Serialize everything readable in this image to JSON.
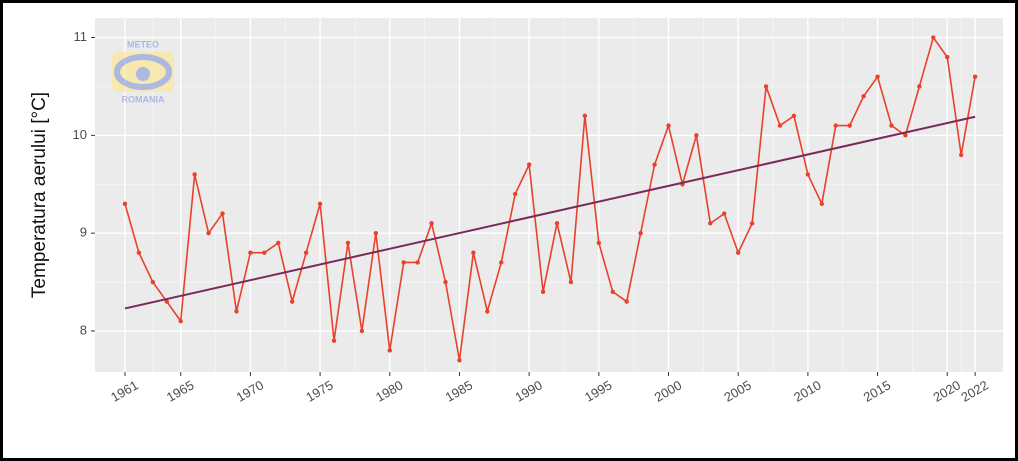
{
  "chart_data": {
    "type": "line",
    "y_label": "Temperatura aerului [°C]",
    "watermark": {
      "top": "METEO",
      "bottom": "ROMANIA"
    },
    "x": [
      1961,
      1962,
      1963,
      1964,
      1965,
      1966,
      1967,
      1968,
      1969,
      1970,
      1971,
      1972,
      1973,
      1974,
      1975,
      1976,
      1977,
      1978,
      1979,
      1980,
      1981,
      1982,
      1983,
      1984,
      1985,
      1986,
      1987,
      1988,
      1989,
      1990,
      1991,
      1992,
      1993,
      1994,
      1995,
      1996,
      1997,
      1998,
      1999,
      2000,
      2001,
      2002,
      2003,
      2004,
      2005,
      2006,
      2007,
      2008,
      2009,
      2010,
      2011,
      2012,
      2013,
      2014,
      2015,
      2016,
      2017,
      2018,
      2019,
      2020,
      2021,
      2022
    ],
    "series": [
      {
        "color": "#e8412c",
        "values": [
          9.3,
          8.8,
          8.5,
          8.3,
          8.1,
          9.6,
          9.0,
          9.2,
          8.2,
          8.8,
          8.8,
          8.9,
          8.3,
          8.8,
          9.3,
          7.9,
          8.9,
          8.0,
          9.0,
          7.8,
          8.7,
          8.7,
          9.1,
          8.5,
          7.7,
          8.8,
          8.2,
          8.7,
          9.4,
          9.7,
          8.4,
          9.1,
          8.5,
          10.2,
          8.9,
          8.4,
          8.3,
          9.0,
          9.7,
          10.1,
          9.5,
          10.0,
          9.1,
          9.2,
          8.8,
          9.1,
          10.5,
          10.1,
          10.2,
          9.6,
          9.3,
          10.1,
          10.1,
          10.4,
          10.6,
          10.1,
          10.0,
          10.5,
          11.0,
          10.8,
          9.8,
          10.6
        ]
      }
    ],
    "trend": {
      "color": "#7a2a5a",
      "x": [
        1961,
        2022
      ],
      "values": [
        8.23,
        10.19
      ]
    },
    "xlim": [
      1958.85,
      2024
    ],
    "xticks": [
      1961,
      1965,
      1970,
      1975,
      1980,
      1985,
      1990,
      1995,
      2000,
      2005,
      2010,
      2015,
      2020,
      2022
    ],
    "ylim": [
      7.58,
      11.2
    ],
    "yticks": [
      8,
      9,
      10,
      11
    ],
    "grid": true
  }
}
